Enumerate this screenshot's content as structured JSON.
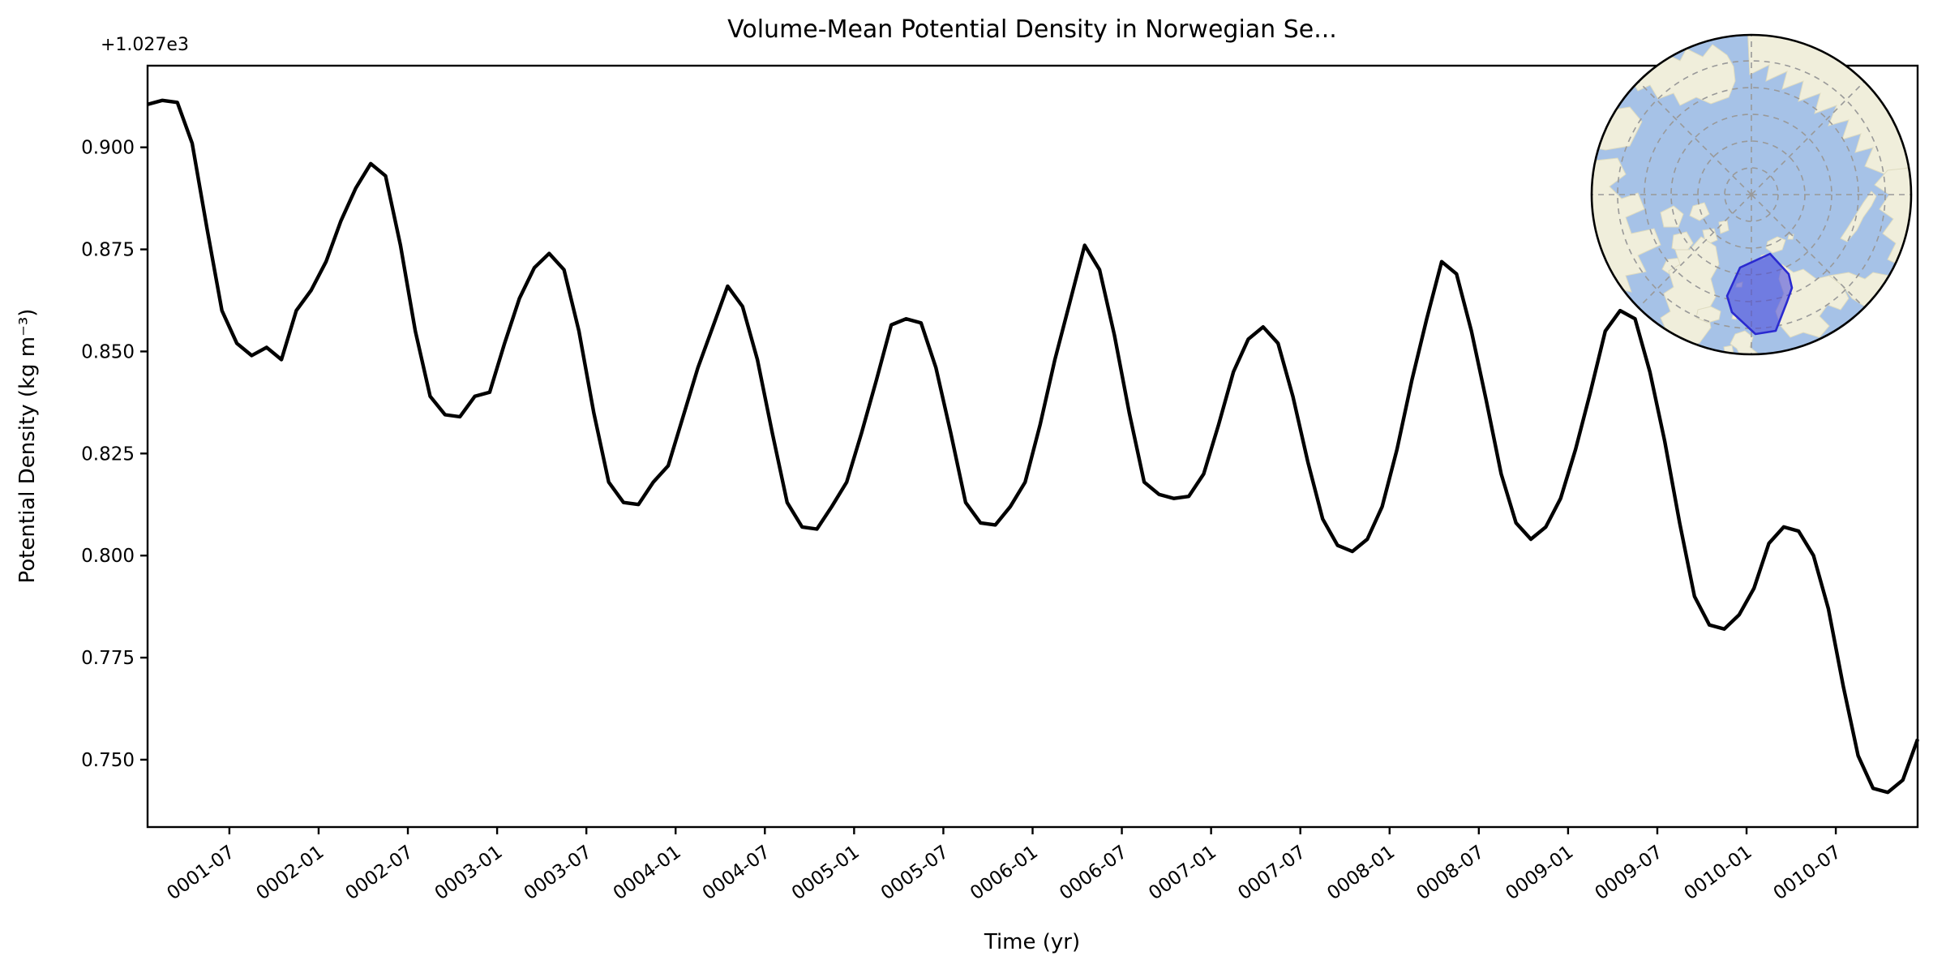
{
  "chart_data": {
    "type": "line",
    "title": "Volume-Mean Potential Density in Norwegian Se...",
    "xlabel": "Time (yr)",
    "ylabel": "Potential Density (kg m⁻³)",
    "y_offset_label": "+1.027e3",
    "grid": false,
    "legend": "none",
    "x_tick_labels": [
      "0001-07",
      "0002-01",
      "0002-07",
      "0003-01",
      "0003-07",
      "0004-01",
      "0004-07",
      "0005-01",
      "0005-07",
      "0006-01",
      "0006-07",
      "0007-01",
      "0007-07",
      "0008-01",
      "0008-07",
      "0009-01",
      "0009-07",
      "0010-01",
      "0010-07"
    ],
    "y_tick_labels": [
      "0.750",
      "0.775",
      "0.800",
      "0.825",
      "0.850",
      "0.875",
      "0.900"
    ],
    "ylim": [
      0.7335,
      0.92
    ],
    "x_start": "0001-01",
    "x_end": "0010-12",
    "x_interval": "monthly",
    "n_points": 120,
    "series": [
      {
        "name": "volume-mean potential density",
        "color": "#000000",
        "linewidth": 4.4,
        "values": [
          0.9105,
          0.9115,
          0.911,
          0.901,
          0.88,
          0.86,
          0.852,
          0.849,
          0.851,
          0.848,
          0.86,
          0.865,
          0.872,
          0.882,
          0.89,
          0.896,
          0.893,
          0.876,
          0.855,
          0.839,
          0.8345,
          0.834,
          0.839,
          0.84,
          0.852,
          0.863,
          0.8705,
          0.874,
          0.87,
          0.855,
          0.835,
          0.818,
          0.813,
          0.8125,
          0.818,
          0.822,
          0.834,
          0.846,
          0.856,
          0.866,
          0.861,
          0.848,
          0.83,
          0.813,
          0.807,
          0.8065,
          0.812,
          0.818,
          0.83,
          0.843,
          0.8565,
          0.858,
          0.857,
          0.846,
          0.83,
          0.813,
          0.808,
          0.8075,
          0.812,
          0.818,
          0.832,
          0.848,
          0.862,
          0.876,
          0.87,
          0.854,
          0.835,
          0.818,
          0.815,
          0.814,
          0.8145,
          0.82,
          0.832,
          0.845,
          0.853,
          0.856,
          0.852,
          0.839,
          0.823,
          0.809,
          0.8025,
          0.801,
          0.804,
          0.812,
          0.826,
          0.843,
          0.858,
          0.872,
          0.869,
          0.855,
          0.838,
          0.82,
          0.808,
          0.804,
          0.807,
          0.814,
          0.826,
          0.84,
          0.855,
          0.86,
          0.858,
          0.845,
          0.828,
          0.808,
          0.79,
          0.783,
          0.782,
          0.7855,
          0.792,
          0.803,
          0.807,
          0.806,
          0.8,
          0.787,
          0.768,
          0.751,
          0.743,
          0.742,
          0.745,
          0.755
        ]
      }
    ],
    "inset_map": {
      "projection": "north-polar",
      "ocean_color": "#a6c2e7",
      "land_color": "#f0eedb",
      "graticule_color": "#999999",
      "highlight_fill": "#4444dd",
      "highlight_edge": "#2a2ad0"
    }
  }
}
